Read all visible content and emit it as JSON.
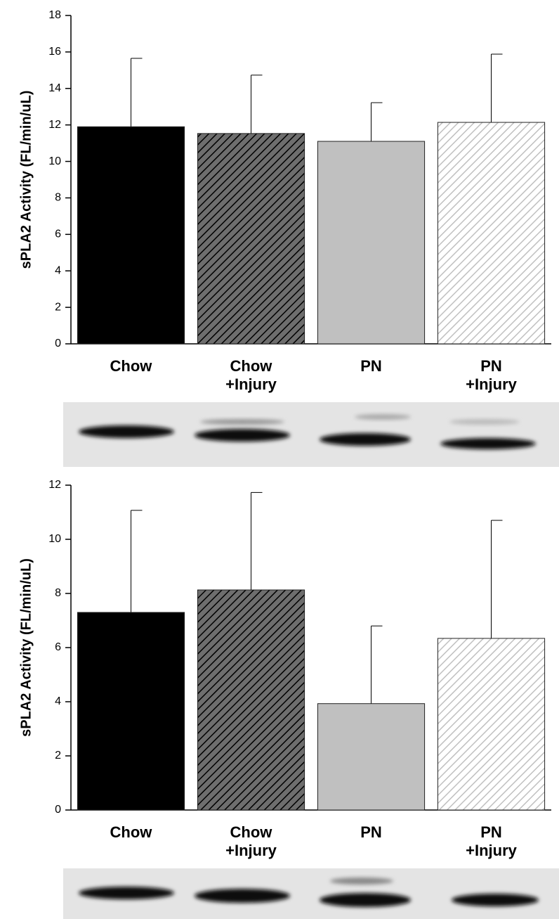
{
  "chart_data": [
    {
      "type": "bar",
      "y_label": "sPLA2 Activity (FL/min/uL)",
      "categories": [
        "Chow",
        "Chow\n+Injury",
        "PN",
        "PN\n+Injury"
      ],
      "values": [
        11.9,
        11.53,
        11.1,
        12.14
      ],
      "errors": [
        3.75,
        3.2,
        2.12,
        3.74
      ],
      "colors": [
        "#000000",
        "#6e6e6e",
        "#c0c0c0",
        "#ffffff"
      ],
      "hatch_colors": [
        null,
        "#000000",
        null,
        "#c0c0c0"
      ],
      "ylim": [
        0,
        18
      ],
      "yticks": [
        0,
        2,
        4,
        6,
        8,
        10,
        12,
        14,
        16,
        18
      ]
    },
    {
      "type": "bar",
      "y_label": "sPLA2 Activity (FL/min/uL)",
      "categories": [
        "Chow",
        "Chow\n+Injury",
        "PN",
        "PN\n+Injury"
      ],
      "values": [
        7.3,
        8.13,
        3.93,
        6.34
      ],
      "errors": [
        3.77,
        3.6,
        2.87,
        4.36
      ],
      "colors": [
        "#000000",
        "#6e6e6e",
        "#c0c0c0",
        "#ffffff"
      ],
      "hatch_colors": [
        null,
        "#000000",
        null,
        "#c0c0c0"
      ],
      "ylim": [
        0,
        12
      ],
      "yticks": [
        0,
        2,
        4,
        6,
        8,
        10,
        12
      ]
    }
  ]
}
